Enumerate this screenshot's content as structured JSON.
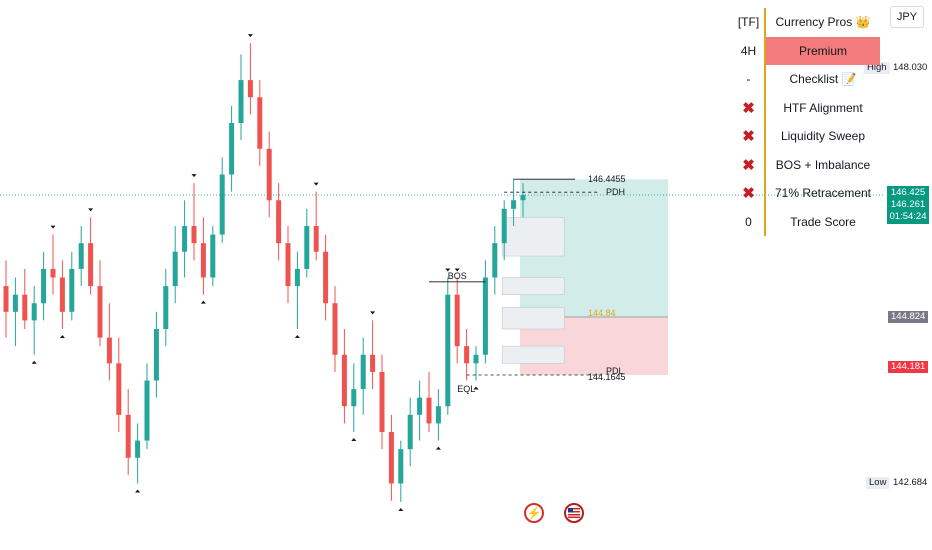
{
  "currency_button": "JPY",
  "table": {
    "header": {
      "tf": "[TF]",
      "brand": "Currency Pros 👑"
    },
    "timeframe": {
      "value": "4H",
      "zone": "Premium"
    },
    "checklist": {
      "marker": "-",
      "label": "Checklist 📝"
    },
    "criteria": [
      {
        "mark": "✖",
        "label": "HTF Alignment"
      },
      {
        "mark": "✖",
        "label": "Liquidity Sweep"
      },
      {
        "mark": "✖",
        "label": "BOS + Imbalance"
      },
      {
        "mark": "✖",
        "label": "71% Retracement"
      }
    ],
    "score": {
      "value": "0",
      "label": "Trade Score"
    }
  },
  "price_axis": {
    "high_label": "High",
    "high_value": "148.030",
    "current_a": "146.425",
    "current_b": "146.261",
    "countdown": "01:54:24",
    "level_mid": "144.824",
    "level_stop": "144.181",
    "low_label": "Low",
    "low_value": "142.684"
  },
  "annotations": {
    "target_price": "146.4455",
    "entry_price": "144.84",
    "stop_price": "144.1645",
    "pdh": "PDH",
    "pdl": "PDL",
    "bos": "BOS",
    "eql": "EQL"
  },
  "colors": {
    "bull": "#26a69a",
    "bear": "#ef5350",
    "profit_zone": "#d2ede9",
    "loss_zone": "#f9d7d9",
    "premium": "#f47b7b",
    "current_price": "#089981",
    "stop_tag": "#f23645",
    "neutral_tag": "#787b86"
  },
  "bottom_icons": [
    "speedometer-icon",
    "flag-icon"
  ],
  "chart_data": {
    "type": "candlestick",
    "x": [],
    "ohlc_series": [
      {
        "name": "",
        "values": [
          [
            145.2,
            145.5,
            144.6,
            144.9
          ],
          [
            144.9,
            145.3,
            144.5,
            145.1
          ],
          [
            145.1,
            145.4,
            144.7,
            144.8
          ],
          [
            144.8,
            145.2,
            144.4,
            145.0
          ],
          [
            145.0,
            145.6,
            144.8,
            145.4
          ],
          [
            145.4,
            145.8,
            145.1,
            145.3
          ],
          [
            145.3,
            145.5,
            144.7,
            144.9
          ],
          [
            144.9,
            145.6,
            144.8,
            145.4
          ],
          [
            145.4,
            145.9,
            145.2,
            145.7
          ],
          [
            145.7,
            146.0,
            145.1,
            145.2
          ],
          [
            145.2,
            145.5,
            144.5,
            144.6
          ],
          [
            144.6,
            145.0,
            144.1,
            144.3
          ],
          [
            144.3,
            144.6,
            143.5,
            143.7
          ],
          [
            143.7,
            144.0,
            143.0,
            143.2
          ],
          [
            143.2,
            143.6,
            142.9,
            143.4
          ],
          [
            143.4,
            144.3,
            143.3,
            144.1
          ],
          [
            144.1,
            144.9,
            143.9,
            144.7
          ],
          [
            144.7,
            145.4,
            144.5,
            145.2
          ],
          [
            145.2,
            145.9,
            145.0,
            145.6
          ],
          [
            145.6,
            146.2,
            145.3,
            145.9
          ],
          [
            145.9,
            146.4,
            145.5,
            145.7
          ],
          [
            145.7,
            146.0,
            145.1,
            145.3
          ],
          [
            145.3,
            145.9,
            145.2,
            145.8
          ],
          [
            145.8,
            146.7,
            145.7,
            146.5
          ],
          [
            146.5,
            147.3,
            146.3,
            147.1
          ],
          [
            147.1,
            147.9,
            146.9,
            147.6
          ],
          [
            147.6,
            148.03,
            147.2,
            147.4
          ],
          [
            147.4,
            147.6,
            146.6,
            146.8
          ],
          [
            146.8,
            147.0,
            146.0,
            146.2
          ],
          [
            146.2,
            146.4,
            145.5,
            145.7
          ],
          [
            145.7,
            145.9,
            145.0,
            145.2
          ],
          [
            145.2,
            145.6,
            144.7,
            145.4
          ],
          [
            145.4,
            146.1,
            145.3,
            145.9
          ],
          [
            145.9,
            146.3,
            145.5,
            145.6
          ],
          [
            145.6,
            145.8,
            144.8,
            145.0
          ],
          [
            145.0,
            145.2,
            144.2,
            144.4
          ],
          [
            144.4,
            144.7,
            143.6,
            143.8
          ],
          [
            143.8,
            144.3,
            143.5,
            144.0
          ],
          [
            144.0,
            144.6,
            143.7,
            144.4
          ],
          [
            144.4,
            144.8,
            144.0,
            144.2
          ],
          [
            144.2,
            144.4,
            143.3,
            143.5
          ],
          [
            143.5,
            143.7,
            142.7,
            142.9
          ],
          [
            142.9,
            143.4,
            142.684,
            143.3
          ],
          [
            143.3,
            143.9,
            143.1,
            143.7
          ],
          [
            143.7,
            144.1,
            143.4,
            143.9
          ],
          [
            143.9,
            144.2,
            143.5,
            143.6
          ],
          [
            143.6,
            144.0,
            143.4,
            143.8
          ],
          [
            143.8,
            145.3,
            143.7,
            145.1
          ],
          [
            145.1,
            145.3,
            144.3,
            144.5
          ],
          [
            144.5,
            144.7,
            144.1,
            144.3
          ],
          [
            144.3,
            144.5,
            144.1,
            144.4
          ],
          [
            144.4,
            145.5,
            144.3,
            145.3
          ],
          [
            145.3,
            145.9,
            145.1,
            145.7
          ],
          [
            145.7,
            146.2,
            145.5,
            146.1
          ],
          [
            146.1,
            146.4455,
            145.9,
            146.2
          ],
          [
            146.2,
            146.4,
            146.0,
            146.261
          ]
        ]
      }
    ],
    "ylim": [
      142.3,
      148.3
    ],
    "price_labels": [
      "148.030",
      "146.425",
      "146.261",
      "144.824",
      "144.181",
      "142.684"
    ],
    "levels": [
      {
        "name": "PDH",
        "value": 146.4455
      },
      {
        "name": "Entry",
        "value": 144.84
      },
      {
        "name": "PDL",
        "value": 144.1645
      },
      {
        "name": "BOS",
        "value": 145.25
      }
    ],
    "position": {
      "target": 146.4455,
      "entry": 144.84,
      "stop": 144.1645
    },
    "grid": false
  }
}
